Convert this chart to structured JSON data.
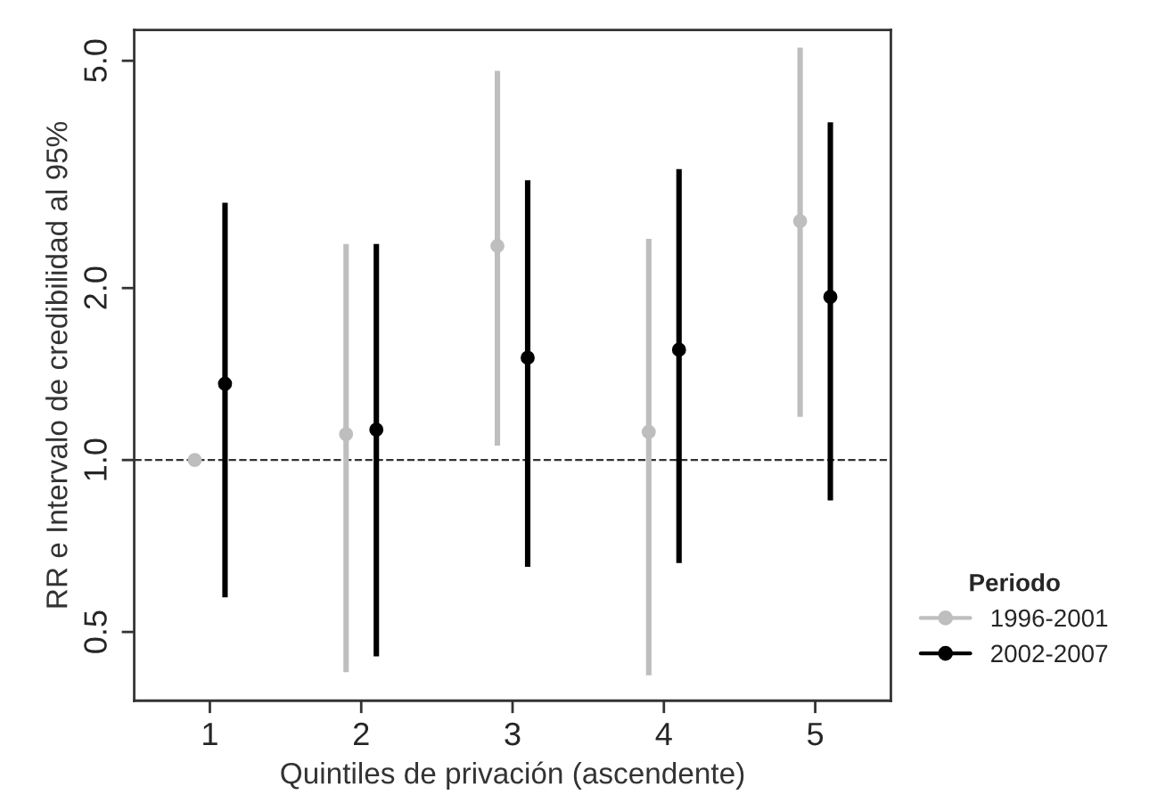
{
  "chart_data": {
    "type": "scatter",
    "xlabel": "Quintiles de privación (ascendente)",
    "ylabel": "RR e Intervalo de credibilidad al 95%",
    "legend_title": "Periodo",
    "categories": [
      "1",
      "2",
      "3",
      "4",
      "5"
    ],
    "series": [
      {
        "name": "1996-2001",
        "color": "#bebebe",
        "values": [
          1.0,
          1.11,
          2.37,
          1.12,
          2.62
        ],
        "errors": [
          null,
          [
            0.425,
            2.39
          ],
          [
            1.06,
            4.8
          ],
          [
            0.42,
            2.44
          ],
          [
            1.19,
            5.27
          ]
        ]
      },
      {
        "name": "2002-2007",
        "color": "#000000",
        "values": [
          1.36,
          1.13,
          1.51,
          1.56,
          1.93
        ],
        "errors": [
          [
            0.575,
            2.82
          ],
          [
            0.453,
            2.39
          ],
          [
            0.65,
            3.09
          ],
          [
            0.66,
            3.23
          ],
          [
            0.85,
            3.9
          ]
        ]
      }
    ],
    "log": "y",
    "ylim": [
      0.379,
      5.66
    ],
    "yticks": [
      {
        "value": 0.5,
        "label": "0.5"
      },
      {
        "value": 1,
        "label": "1.0"
      },
      {
        "value": 2,
        "label": "2.0"
      },
      {
        "value": 5,
        "label": "5.0"
      }
    ],
    "ref_lines": [
      {
        "axis": "y",
        "value": 1,
        "line_style": "dashed",
        "color": "#333333"
      }
    ],
    "marker": "circle",
    "grid": false,
    "legend": "right"
  }
}
